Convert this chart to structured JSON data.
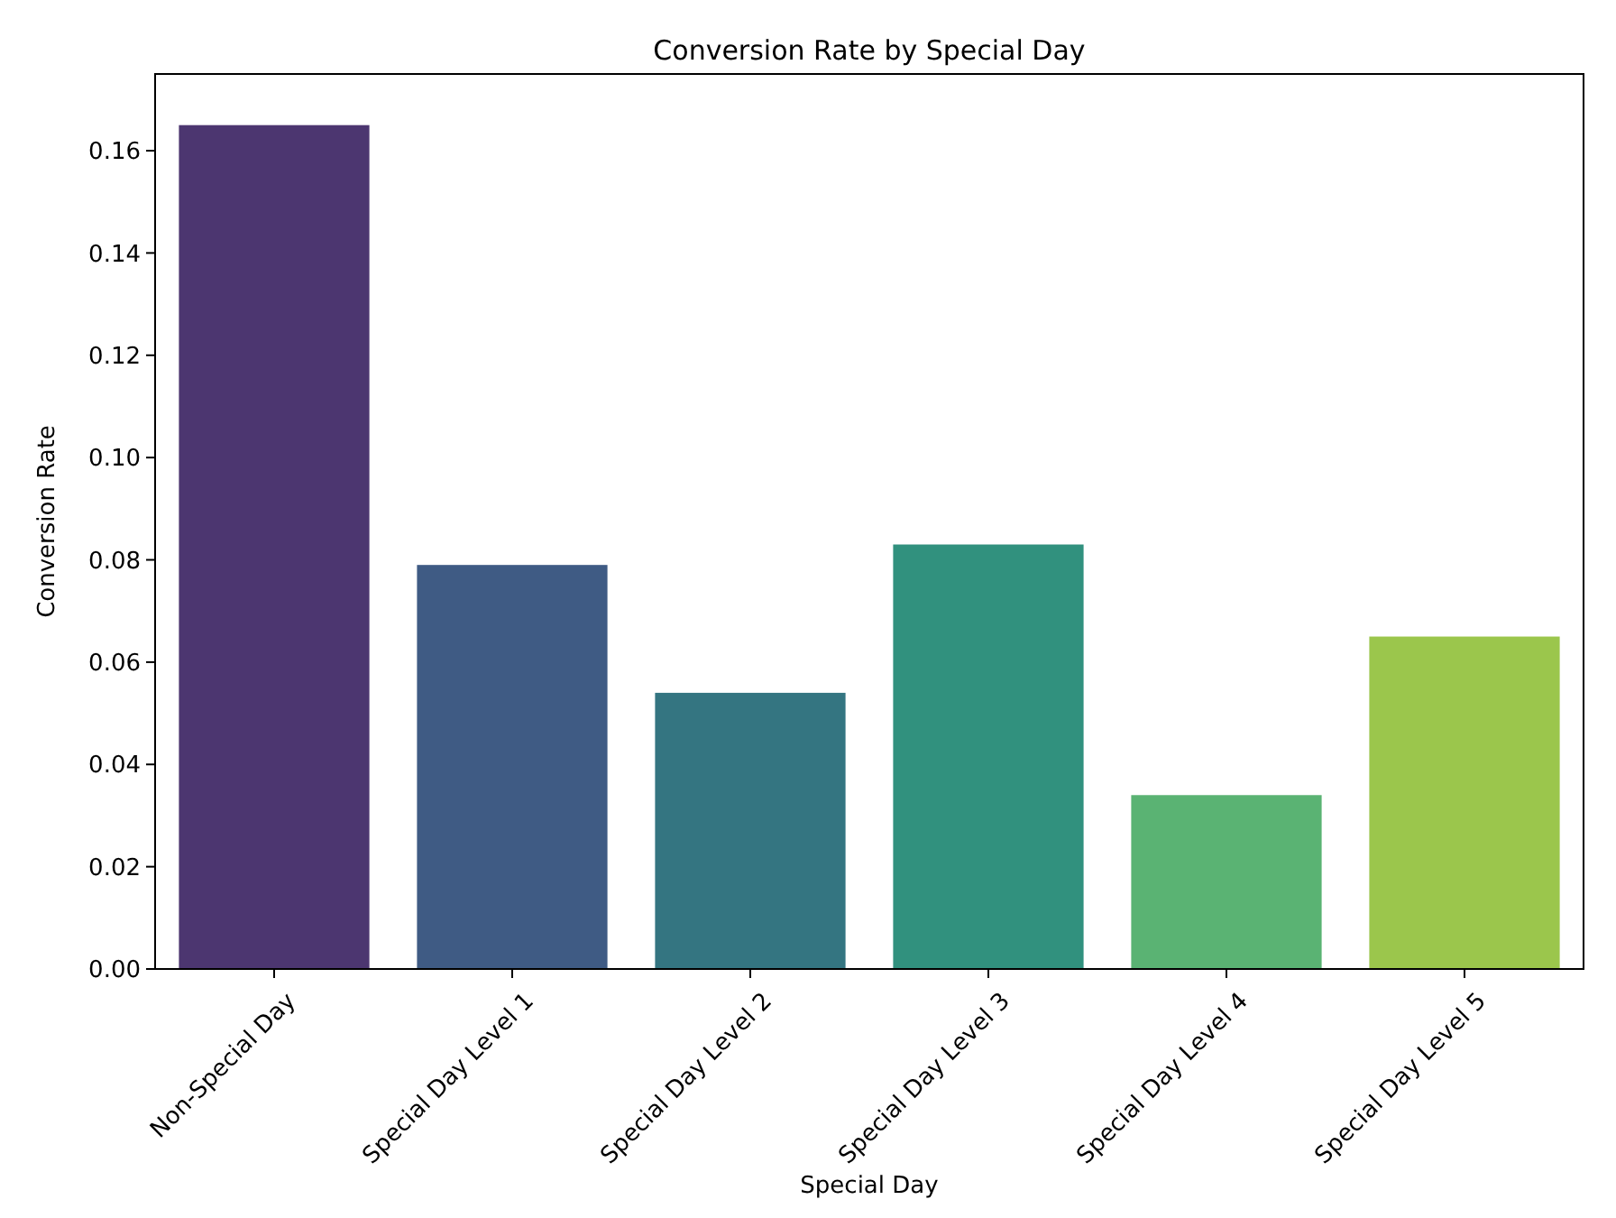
{
  "chart_data": {
    "type": "bar",
    "title": "Conversion Rate by Special Day",
    "xlabel": "Special Day",
    "ylabel": "Conversion Rate",
    "categories": [
      "Non-Special Day",
      "Special Day Level 1",
      "Special Day Level 2",
      "Special Day Level 3",
      "Special Day Level 4",
      "Special Day Level 5"
    ],
    "values": [
      0.165,
      0.079,
      0.054,
      0.083,
      0.034,
      0.065
    ],
    "colors": [
      "#4c3670",
      "#3f5b84",
      "#347581",
      "#31917e",
      "#5ab373",
      "#9bc64c"
    ],
    "ylim": [
      0,
      0.175
    ],
    "yticks": [
      {
        "value": 0,
        "label": "0.00"
      },
      {
        "value": 0.02,
        "label": "0.02"
      },
      {
        "value": 0.04,
        "label": "0.04"
      },
      {
        "value": 0.06,
        "label": "0.06"
      },
      {
        "value": 0.08,
        "label": "0.08"
      },
      {
        "value": 0.1,
        "label": "0.10"
      },
      {
        "value": 0.12,
        "label": "0.12"
      },
      {
        "value": 0.14,
        "label": "0.14"
      },
      {
        "value": 0.16,
        "label": "0.16"
      }
    ],
    "grid": false
  }
}
